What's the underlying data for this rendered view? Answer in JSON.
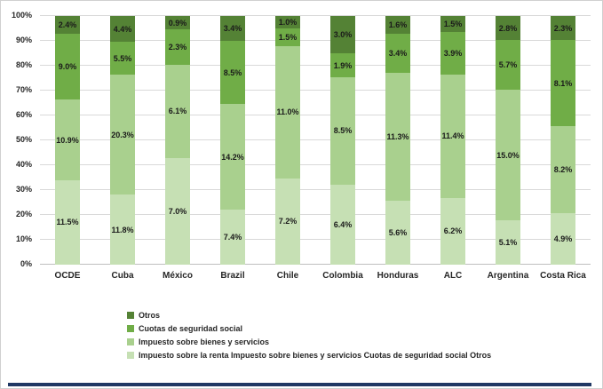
{
  "chart_data": {
    "type": "bar",
    "subtype": "stacked-100",
    "title": "",
    "xlabel": "",
    "ylabel": "",
    "ylim": [
      0,
      100
    ],
    "grid": true,
    "legend_position": "bottom-left",
    "y_ticks": [
      "0%",
      "10%",
      "20%",
      "30%",
      "40%",
      "50%",
      "60%",
      "70%",
      "80%",
      "90%",
      "100%"
    ],
    "categories": [
      "OCDE",
      "Cuba",
      "México",
      "Brazil",
      "Chile",
      "Colombia",
      "Honduras",
      "ALC",
      "Argentina",
      "Costa Rica"
    ],
    "series": [
      {
        "name": "Impuesto sobre la renta",
        "color": "#c6e0b4",
        "values": [
          11.5,
          11.8,
          7.0,
          7.4,
          7.2,
          6.4,
          5.6,
          6.2,
          5.1,
          4.9
        ]
      },
      {
        "name": "Impuesto sobre bienes y servicios",
        "color": "#a9d08e",
        "values": [
          10.9,
          20.3,
          6.1,
          14.2,
          11.0,
          8.5,
          11.3,
          11.4,
          15.0,
          8.2
        ]
      },
      {
        "name": "Cuotas de seguridad social",
        "color": "#70ad47",
        "values": [
          9.0,
          5.5,
          2.3,
          8.5,
          1.5,
          1.9,
          3.4,
          3.9,
          5.7,
          8.1
        ]
      },
      {
        "name": "Otros",
        "color": "#548235",
        "values": [
          2.4,
          4.4,
          0.9,
          3.4,
          1.0,
          3.0,
          1.6,
          1.5,
          2.8,
          2.3
        ]
      }
    ],
    "legend": [
      {
        "label": "Otros",
        "color": "#548235"
      },
      {
        "label": "Cuotas de seguridad social",
        "color": "#70ad47"
      },
      {
        "label": "Impuesto sobre bienes y servicios",
        "color": "#a9d08e"
      },
      {
        "label": "Impuesto sobre la renta Impuesto sobre bienes y servicios Cuotas de seguridad social Otros",
        "color": "#c6e0b4"
      }
    ],
    "colors": {
      "gridline": "#d9d9d9",
      "axis_line": "#bfbfbf",
      "label_text": "#262626",
      "bottom_bar": "#203864"
    }
  }
}
